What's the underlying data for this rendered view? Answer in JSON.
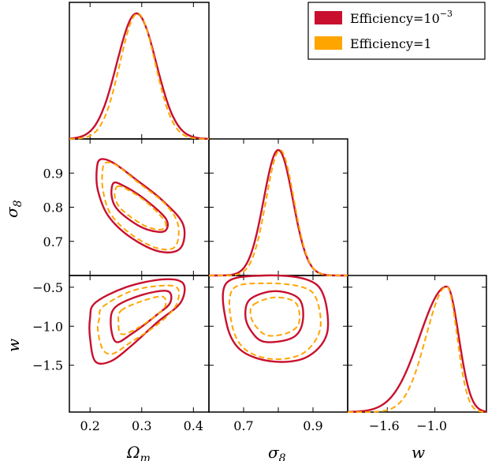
{
  "colors": {
    "efficiency_low": "#c8102e",
    "efficiency_high": "#ffa500"
  },
  "chart_data": {
    "type": "corner",
    "parameters": [
      "Ω_m",
      "σ_8",
      "w"
    ],
    "axis_labels": {
      "omega_m": "Ω",
      "omega_m_sub": "m",
      "sigma8": "σ",
      "sigma8_sub": "8",
      "w": "w"
    },
    "legend": {
      "entries": [
        {
          "label_prefix": "Efficiency=10",
          "label_sup": "−3",
          "color": "#c8102e"
        },
        {
          "label_prefix": "Efficiency=1",
          "label_sup": "",
          "color": "#ffa500"
        }
      ],
      "placement": "top-right"
    },
    "ranges": {
      "omega_m": [
        0.16,
        0.43
      ],
      "sigma8": [
        0.6,
        1.0
      ],
      "w": [
        -2.1,
        -0.35
      ]
    },
    "ticks": {
      "omega_m": [
        0.2,
        0.3,
        0.4
      ],
      "omega_m_labels": [
        "0.2",
        "0.3",
        "0.4"
      ],
      "sigma8": [
        0.7,
        0.8,
        0.9
      ],
      "sigma8_y_labels": [
        "0.7",
        "0.8",
        "0.9"
      ],
      "sigma8_x_labels": [
        "0.7",
        "0.9"
      ],
      "sigma8_x_label_values": [
        0.7,
        0.9
      ],
      "w": [
        -1.5,
        -1.0,
        -0.5
      ],
      "w_y_labels": [
        "−1.5",
        "−1.0",
        "−0.5"
      ],
      "w_x_values": [
        -1.6,
        -1.0
      ],
      "w_x_labels": [
        "−1.6",
        "−1.0"
      ]
    },
    "series": [
      {
        "name": "Efficiency=10^-3",
        "color": "#c8102e",
        "dash": false,
        "marginals": {
          "omega_m": {
            "mean": 0.29,
            "sigma": 0.038
          },
          "sigma8": {
            "mean": 0.8,
            "sigma": 0.042
          },
          "w": {
            "mean": -0.85,
            "sigma_left": 0.34,
            "sigma_right": 0.15
          }
        },
        "contours": {
          "sigma8_vs_omega_m": [
            {
              "level": "68%",
              "points": [
                [
                  0.245,
                  0.87
                ],
                [
                  0.262,
                  0.865
                ],
                [
                  0.3,
                  0.83
                ],
                [
                  0.345,
                  0.77
                ],
                [
                  0.348,
                  0.735
                ],
                [
                  0.33,
                  0.728
                ],
                [
                  0.295,
                  0.745
                ],
                [
                  0.255,
                  0.79
                ],
                [
                  0.242,
                  0.83
                ]
              ]
            },
            {
              "level": "95%",
              "points": [
                [
                  0.22,
                  0.94
                ],
                [
                  0.245,
                  0.93
                ],
                [
                  0.29,
                  0.88
                ],
                [
                  0.34,
                  0.82
                ],
                [
                  0.38,
                  0.75
                ],
                [
                  0.375,
                  0.68
                ],
                [
                  0.335,
                  0.67
                ],
                [
                  0.28,
                  0.71
                ],
                [
                  0.235,
                  0.775
                ],
                [
                  0.215,
                  0.85
                ],
                [
                  0.213,
                  0.91
                ]
              ]
            }
          ],
          "w_vs_omega_m": [
            {
              "level": "68%",
              "points": [
                [
                  0.25,
                  -0.75
                ],
                [
                  0.3,
                  -0.6
                ],
                [
                  0.35,
                  -0.55
                ],
                [
                  0.355,
                  -0.7
                ],
                [
                  0.33,
                  -0.85
                ],
                [
                  0.28,
                  -1.1
                ],
                [
                  0.25,
                  -1.2
                ],
                [
                  0.24,
                  -0.95
                ]
              ]
            },
            {
              "level": "95%",
              "points": [
                [
                  0.21,
                  -0.7
                ],
                [
                  0.27,
                  -0.5
                ],
                [
                  0.34,
                  -0.4
                ],
                [
                  0.38,
                  -0.45
                ],
                [
                  0.375,
                  -0.7
                ],
                [
                  0.33,
                  -0.95
                ],
                [
                  0.28,
                  -1.25
                ],
                [
                  0.24,
                  -1.45
                ],
                [
                  0.21,
                  -1.45
                ],
                [
                  0.2,
                  -1.15
                ],
                [
                  0.2,
                  -0.9
                ]
              ]
            }
          ],
          "w_vs_sigma8": [
            {
              "level": "68%",
              "points": [
                [
                  0.72,
                  -0.65
                ],
                [
                  0.79,
                  -0.55
                ],
                [
                  0.86,
                  -0.65
                ],
                [
                  0.87,
                  -0.95
                ],
                [
                  0.84,
                  -1.15
                ],
                [
                  0.76,
                  -1.2
                ],
                [
                  0.72,
                  -1.05
                ],
                [
                  0.705,
                  -0.85
                ]
              ]
            },
            {
              "level": "95%",
              "points": [
                [
                  0.65,
                  -0.45
                ],
                [
                  0.76,
                  -0.35
                ],
                [
                  0.88,
                  -0.4
                ],
                [
                  0.93,
                  -0.6
                ],
                [
                  0.94,
                  -1.1
                ],
                [
                  0.88,
                  -1.4
                ],
                [
                  0.78,
                  -1.45
                ],
                [
                  0.69,
                  -1.3
                ],
                [
                  0.65,
                  -0.95
                ]
              ]
            }
          ]
        }
      },
      {
        "name": "Efficiency=1",
        "color": "#ffa500",
        "dash": true,
        "marginals": {
          "omega_m": {
            "mean": 0.292,
            "sigma": 0.034
          },
          "sigma8": {
            "mean": 0.805,
            "sigma": 0.04
          },
          "w": {
            "mean": -0.85,
            "sigma_left": 0.26,
            "sigma_right": 0.13
          }
        },
        "contours": {
          "sigma8_vs_omega_m": [
            {
              "level": "68%",
              "points": [
                [
                  0.252,
                  0.86
                ],
                [
                  0.268,
                  0.855
                ],
                [
                  0.305,
                  0.82
                ],
                [
                  0.342,
                  0.765
                ],
                [
                  0.345,
                  0.74
                ],
                [
                  0.328,
                  0.735
                ],
                [
                  0.298,
                  0.752
                ],
                [
                  0.26,
                  0.795
                ],
                [
                  0.248,
                  0.83
                ]
              ]
            },
            {
              "level": "95%",
              "points": [
                [
                  0.23,
                  0.93
                ],
                [
                  0.252,
                  0.922
                ],
                [
                  0.295,
                  0.87
                ],
                [
                  0.345,
                  0.81
                ],
                [
                  0.37,
                  0.75
                ],
                [
                  0.365,
                  0.685
                ],
                [
                  0.33,
                  0.68
                ],
                [
                  0.28,
                  0.72
                ],
                [
                  0.24,
                  0.78
                ],
                [
                  0.225,
                  0.85
                ],
                [
                  0.224,
                  0.905
                ]
              ]
            }
          ],
          "w_vs_omega_m": [
            {
              "level": "68%",
              "points": [
                [
                  0.26,
                  -0.8
                ],
                [
                  0.3,
                  -0.68
                ],
                [
                  0.34,
                  -0.62
                ],
                [
                  0.345,
                  -0.75
                ],
                [
                  0.32,
                  -0.9
                ],
                [
                  0.285,
                  -1.05
                ],
                [
                  0.26,
                  -1.1
                ],
                [
                  0.255,
                  -0.95
                ]
              ]
            },
            {
              "level": "95%",
              "points": [
                [
                  0.225,
                  -0.75
                ],
                [
                  0.28,
                  -0.55
                ],
                [
                  0.34,
                  -0.48
                ],
                [
                  0.37,
                  -0.52
                ],
                [
                  0.365,
                  -0.75
                ],
                [
                  0.33,
                  -0.98
                ],
                [
                  0.28,
                  -1.2
                ],
                [
                  0.245,
                  -1.35
                ],
                [
                  0.225,
                  -1.3
                ],
                [
                  0.215,
                  -1.05
                ],
                [
                  0.218,
                  -0.9
                ]
              ]
            }
          ],
          "w_vs_sigma8": [
            {
              "level": "68%",
              "points": [
                [
                  0.73,
                  -0.72
                ],
                [
                  0.79,
                  -0.63
                ],
                [
                  0.85,
                  -0.7
                ],
                [
                  0.86,
                  -0.95
                ],
                [
                  0.83,
                  -1.08
                ],
                [
                  0.77,
                  -1.12
                ],
                [
                  0.735,
                  -1.0
                ],
                [
                  0.72,
                  -0.85
                ]
              ]
            },
            {
              "level": "95%",
              "points": [
                [
                  0.67,
                  -0.52
                ],
                [
                  0.77,
                  -0.45
                ],
                [
                  0.87,
                  -0.5
                ],
                [
                  0.91,
                  -0.65
                ],
                [
                  0.92,
                  -1.05
                ],
                [
                  0.87,
                  -1.35
                ],
                [
                  0.78,
                  -1.42
                ],
                [
                  0.7,
                  -1.28
                ],
                [
                  0.665,
                  -0.95
                ]
              ]
            }
          ]
        }
      }
    ]
  }
}
